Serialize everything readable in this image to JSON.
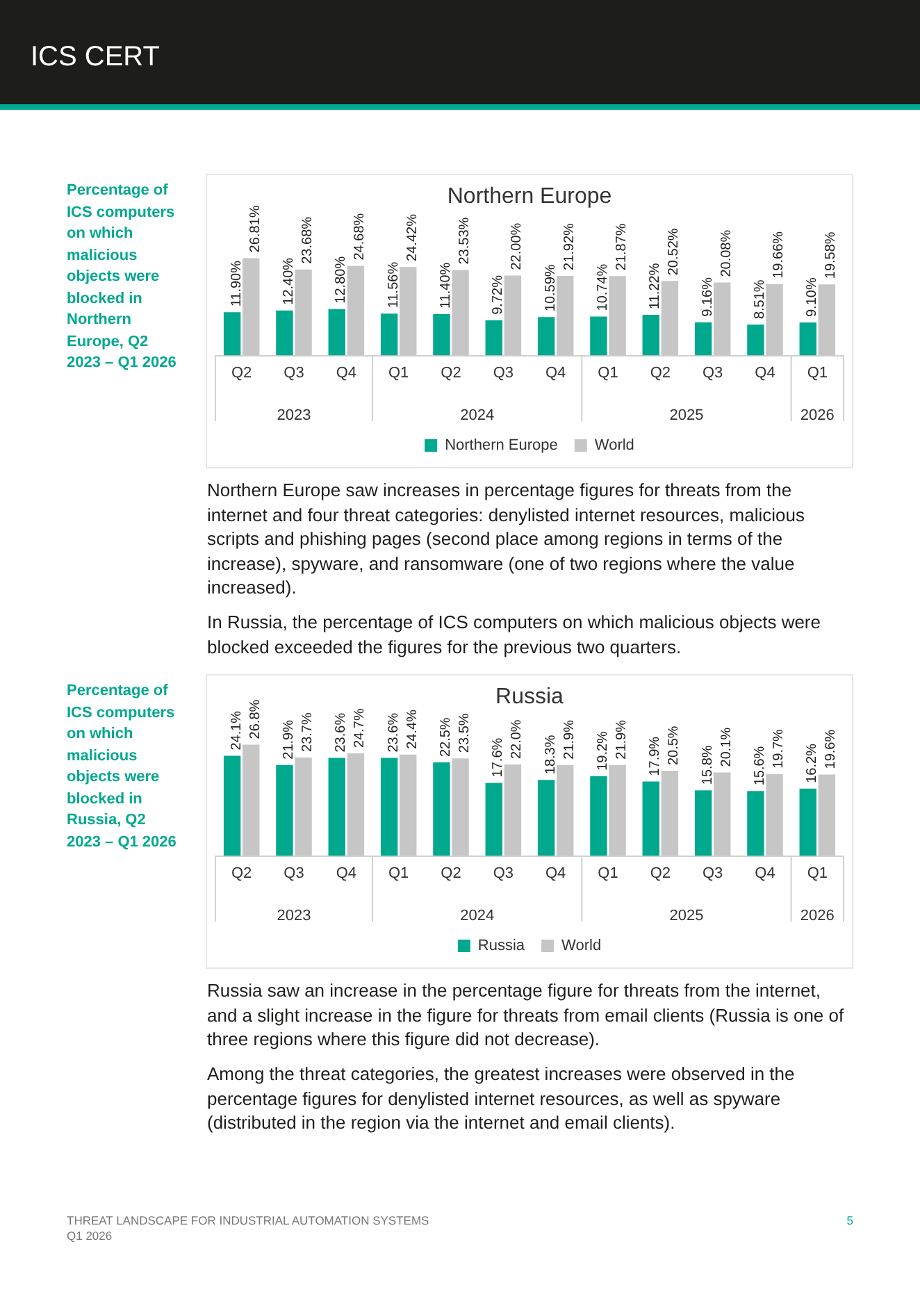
{
  "chart_data": [
    {
      "type": "bar",
      "title": "Northern Europe",
      "subtitle": "Percentage of ICS computers on which malicious objects were blocked in Northern Europe, Q2 2023 – Q1 2026",
      "categories": [
        "Q2",
        "Q3",
        "Q4",
        "Q1",
        "Q2",
        "Q3",
        "Q4",
        "Q1",
        "Q2",
        "Q3",
        "Q4",
        "Q1"
      ],
      "series": [
        {
          "name": "Northern Europe",
          "color": "#00a88e",
          "values": [
            11.9,
            12.4,
            12.8,
            11.56,
            11.4,
            9.72,
            10.59,
            10.74,
            11.22,
            9.16,
            8.51,
            9.1
          ],
          "value_labels": [
            "11.90%",
            "12.40%",
            "12.80%",
            "11.56%",
            "11.40%",
            "9.72%",
            "10.59%",
            "10.74%",
            "11.22%",
            "9.16%",
            "8.51%",
            "9.10%"
          ]
        },
        {
          "name": "World",
          "color": "#c6c6c6",
          "values": [
            26.81,
            23.68,
            24.68,
            24.42,
            23.53,
            22.0,
            21.92,
            21.87,
            20.52,
            20.08,
            19.66,
            19.58
          ],
          "value_labels": [
            "26.81%",
            "23.68%",
            "24.68%",
            "24.42%",
            "23.53%",
            "22.00%",
            "21.92%",
            "21.87%",
            "20.52%",
            "20.08%",
            "19.66%",
            "19.58%"
          ]
        }
      ],
      "legend": "bottom",
      "grid": false,
      "annotations": [
        "2023",
        "2024",
        "2025",
        "2026",
        "ICS CERT",
        "Northern Europe saw increases in percentage figures for threats from the internet and four threat categories: denylisted internet resources, malicious scripts and phishing pages (second place among regions in terms of the increase), spyware, and ransomware (one of two regions where the value increased).",
        "In Russia, the percentage of ICS computers on which malicious objects were blocked exceeded the figures for the previous two quarters."
      ]
    },
    {
      "type": "bar",
      "title": "Russia",
      "subtitle": "Percentage of ICS computers on which malicious objects were blocked in Russia, Q2 2023 – Q1 2026",
      "categories": [
        "Q2",
        "Q3",
        "Q4",
        "Q1",
        "Q2",
        "Q3",
        "Q4",
        "Q1",
        "Q2",
        "Q3",
        "Q4",
        "Q1"
      ],
      "series": [
        {
          "name": "Russia",
          "color": "#00a88e",
          "values": [
            24.1,
            21.9,
            23.6,
            23.6,
            22.5,
            17.6,
            18.3,
            19.2,
            17.9,
            15.8,
            15.6,
            16.2
          ],
          "value_labels": [
            "24.1%",
            "21.9%",
            "23.6%",
            "23.6%",
            "22.5%",
            "17.6%",
            "18.3%",
            "19.2%",
            "17.9%",
            "15.8%",
            "15.6%",
            "16.2%"
          ]
        },
        {
          "name": "World",
          "color": "#c6c6c6",
          "values": [
            26.8,
            23.7,
            24.7,
            24.4,
            23.5,
            22.0,
            21.9,
            21.9,
            20.5,
            20.1,
            19.7,
            19.6
          ],
          "value_labels": [
            "26.8%",
            "23.7%",
            "24.7%",
            "24.4%",
            "23.5%",
            "22.0%",
            "21.9%",
            "21.9%",
            "20.5%",
            "20.1%",
            "19.7%",
            "19.6%"
          ]
        }
      ],
      "legend": "bottom",
      "grid": false,
      "annotations": [
        "2023",
        "2024",
        "2025",
        "2026",
        "Russia saw an increase in the percentage figure for threats from the internet, and a slight increase in the figure for threats from email clients (Russia is one of three regions where this figure did not decrease).",
        "Among the threat categories, the greatest increases were observed in the percentage figures for denylisted internet resources, as well as spyware (distributed in the region via the internet and email clients).",
        "THREAT LANDSCAPE FOR INDUSTRIAL AUTOMATION SYSTEMS\nQ1 2026",
        "5"
      ]
    }
  ]
}
